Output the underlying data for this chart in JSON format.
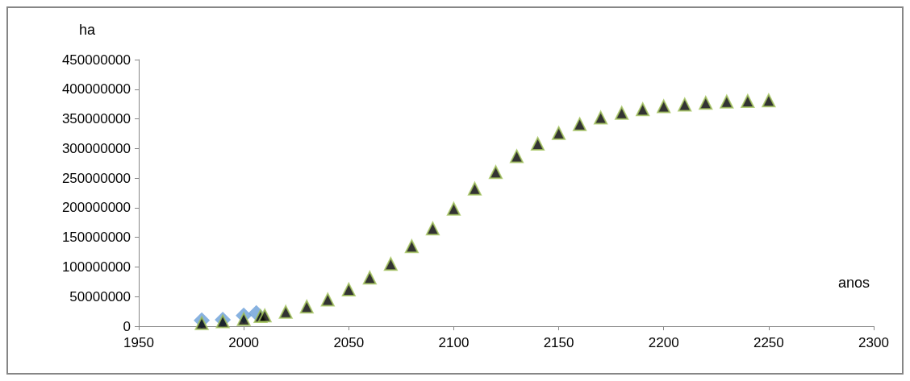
{
  "chart_data": {
    "type": "scatter",
    "xlabel": "anos",
    "ylabel": "ha",
    "xlim": [
      1950,
      2300
    ],
    "xticks": [
      1950,
      2000,
      2050,
      2100,
      2150,
      2200,
      2250,
      2300
    ],
    "ylim": [
      0,
      450000000
    ],
    "yticks": [
      0,
      50000000,
      100000000,
      150000000,
      200000000,
      250000000,
      300000000,
      350000000,
      400000000,
      450000000
    ],
    "grid": false,
    "series": [
      {
        "color": "#6a9fd8",
        "marker": "diamond",
        "x": [
          1980,
          1990,
          2000,
          2006
        ],
        "values": [
          10000000,
          11000000,
          18000000,
          22000000
        ]
      },
      {
        "color": "#000000",
        "marker": "triangle",
        "x": [
          1980,
          1990,
          2000,
          2008,
          2010,
          2020,
          2030,
          2040,
          2050,
          2060,
          2070,
          2080,
          2090,
          2100,
          2110,
          2120,
          2130,
          2140,
          2150,
          2160,
          2170,
          2180,
          2190,
          2200,
          2210,
          2220,
          2230,
          2240,
          2250
        ],
        "values": [
          5000000,
          8000000,
          12000000,
          17000000,
          18000000,
          24000000,
          33000000,
          45000000,
          62000000,
          82000000,
          105000000,
          135000000,
          165000000,
          198000000,
          232000000,
          260000000,
          287000000,
          308000000,
          326000000,
          341000000,
          352000000,
          360000000,
          366000000,
          371000000,
          374000000,
          377000000,
          379000000,
          380000000,
          381000000
        ]
      }
    ]
  }
}
